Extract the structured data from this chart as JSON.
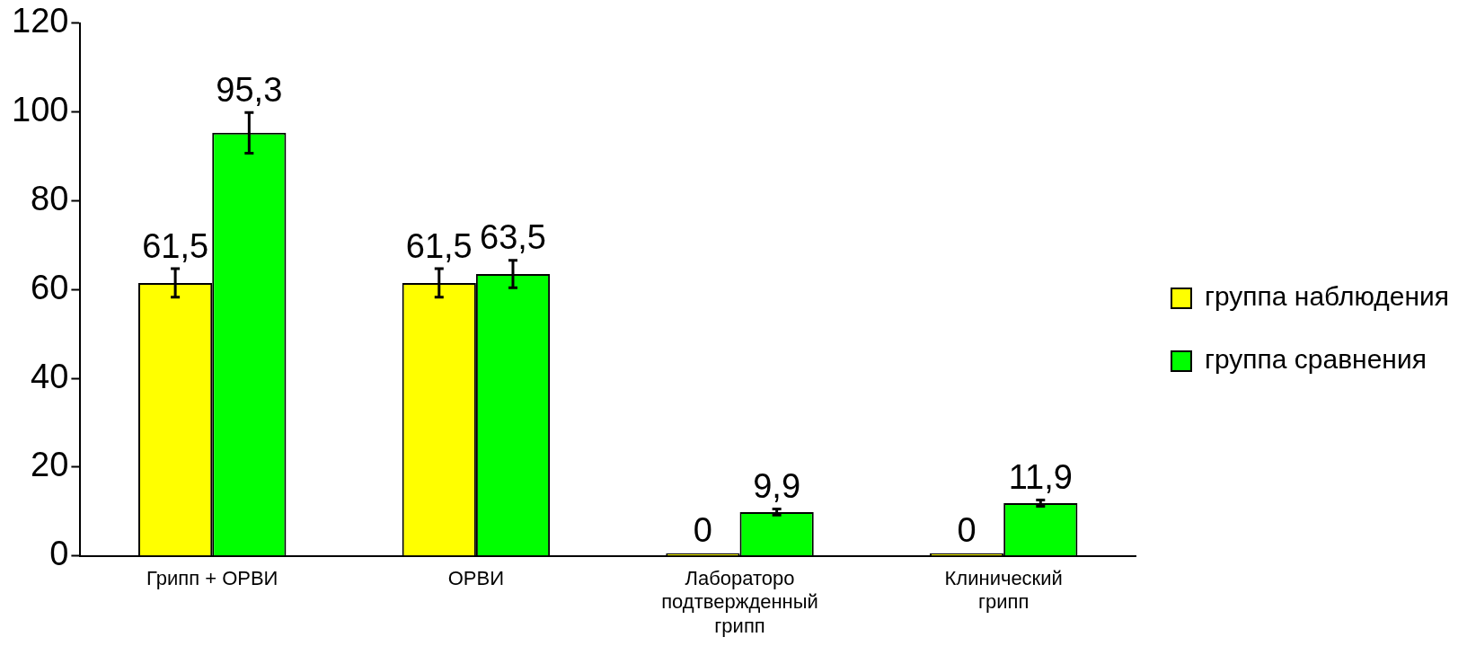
{
  "chart_data": {
    "type": "bar",
    "categories": [
      "Грипп + ОРВИ",
      "ОРВИ",
      "Лабораторо подтвержденный грипп",
      "Клинический грипп"
    ],
    "series": [
      {
        "name": "группа наблюдения",
        "color": "#ffff00",
        "values": [
          61.5,
          61.5,
          0,
          0
        ],
        "errors": [
          3.2,
          3.2,
          null,
          null
        ],
        "value_labels": [
          "61,5",
          "61,5",
          "0",
          "0"
        ]
      },
      {
        "name": "группа сравнения",
        "color": "#00ff00",
        "values": [
          95.3,
          63.5,
          9.9,
          11.9
        ],
        "errors": [
          4.6,
          3.1,
          0.7,
          0.7
        ],
        "value_labels": [
          "95,3",
          "63,5",
          "9,9",
          "11,9"
        ]
      }
    ],
    "ylim": [
      0,
      120
    ],
    "yticks": [
      0,
      20,
      40,
      60,
      80,
      100,
      120
    ],
    "grid": false,
    "legend": "right"
  }
}
